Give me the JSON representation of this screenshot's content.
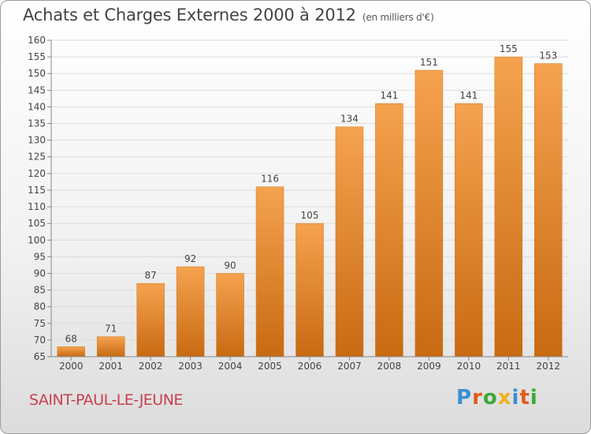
{
  "title": "Achats et Charges Externes 2000 à 2012",
  "subtitle": "(en milliers d'€)",
  "commune": "SAINT-PAUL-LE-JEUNE",
  "logo": {
    "letters": [
      "P",
      "r",
      "o",
      "x",
      "i",
      "t",
      "i"
    ],
    "colors": [
      "#3a8fd0",
      "#e05a1e",
      "#3aa935",
      "#f0b020",
      "#3a8fd0",
      "#e05a1e",
      "#3aa935"
    ]
  },
  "colors": {
    "bar_top": "#f5a24f",
    "bar_bottom": "#c86a12",
    "grid": "#dddddd",
    "axis": "#888888"
  },
  "chart_data": {
    "type": "bar",
    "categories": [
      "2000",
      "2001",
      "2002",
      "2003",
      "2004",
      "2005",
      "2006",
      "2007",
      "2008",
      "2009",
      "2010",
      "2011",
      "2012"
    ],
    "values": [
      68,
      71,
      87,
      92,
      90,
      116,
      105,
      134,
      141,
      151,
      141,
      155,
      153
    ],
    "ylim": [
      65,
      160
    ],
    "yticks": [
      65,
      70,
      75,
      80,
      85,
      90,
      95,
      100,
      105,
      110,
      115,
      120,
      125,
      130,
      135,
      140,
      145,
      150,
      155,
      160
    ],
    "grid": true
  }
}
